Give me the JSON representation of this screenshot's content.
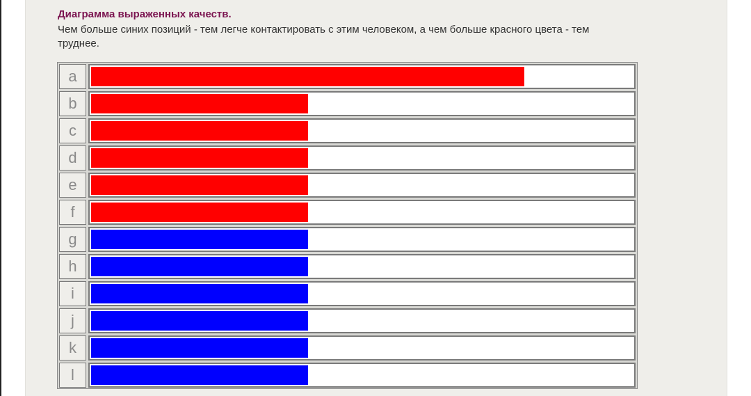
{
  "header": {
    "title": "Диаграмма выраженных качеств.",
    "description": "Чем больше синих позиций - тем легче контактировать с этим человеком, а чем больше красного цвета - тем труднее."
  },
  "chart_data": {
    "type": "bar",
    "orientation": "horizontal",
    "title": "Диаграмма выраженных качеств.",
    "categories": [
      "a",
      "b",
      "c",
      "d",
      "e",
      "f",
      "g",
      "h",
      "i",
      "j",
      "k",
      "l"
    ],
    "values": [
      80,
      40,
      40,
      40,
      40,
      40,
      40,
      40,
      40,
      40,
      40,
      40
    ],
    "bar_colors": [
      "#ff0000",
      "#ff0000",
      "#ff0000",
      "#ff0000",
      "#ff0000",
      "#ff0000",
      "#0000ff",
      "#0000ff",
      "#0000ff",
      "#0000ff",
      "#0000ff",
      "#0000ff"
    ],
    "xlim": [
      0,
      100
    ],
    "grid": false,
    "legend": "none"
  }
}
